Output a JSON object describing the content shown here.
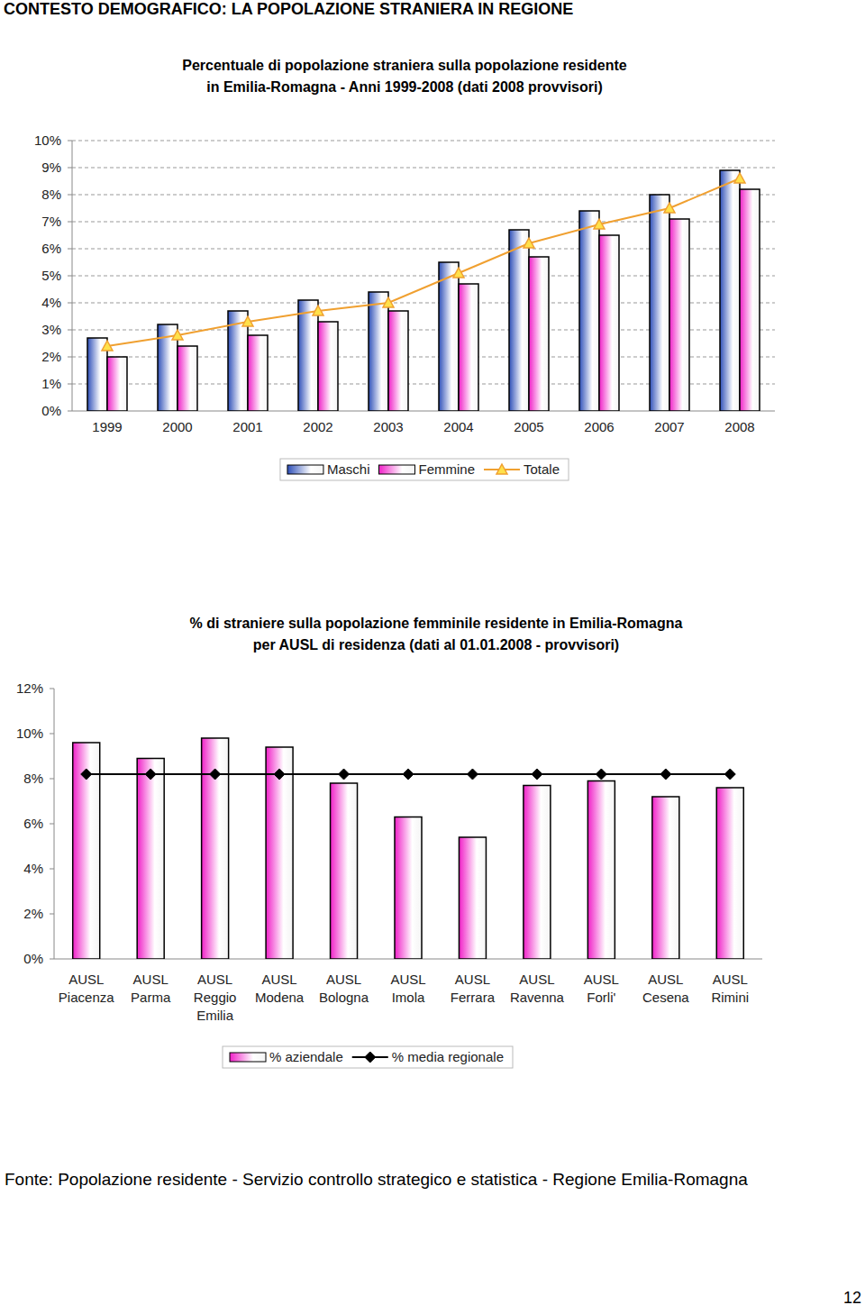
{
  "header": "CONTESTO DEMOGRAFICO: LA POPOLAZIONE STRANIERA IN REGIONE",
  "source": "Fonte: Popolazione residente - Servizio controllo strategico e statistica - Regione Emilia-Romagna",
  "page_number": 12,
  "chart_data": [
    {
      "type": "bar",
      "title": "Percentuale di popolazione straniera sulla popolazione residente\nin Emilia-Romagna - Anni 1999-2008 (dati 2008 provvisori)",
      "categories": [
        "1999",
        "2000",
        "2001",
        "2002",
        "2003",
        "2004",
        "2005",
        "2006",
        "2007",
        "2008"
      ],
      "series": [
        {
          "name": "Maschi",
          "type": "bar",
          "color": "#2e4fb8",
          "values": [
            2.7,
            3.2,
            3.7,
            4.1,
            4.4,
            5.5,
            6.7,
            7.4,
            8.0,
            8.9
          ]
        },
        {
          "name": "Femmine",
          "type": "bar",
          "color": "#f020c8",
          "values": [
            2.0,
            2.4,
            2.8,
            3.3,
            3.7,
            4.7,
            5.7,
            6.5,
            7.1,
            8.2
          ]
        },
        {
          "name": "Totale",
          "type": "line",
          "color": "#f0a030",
          "marker": "triangle",
          "line_style": "solid",
          "values": [
            2.4,
            2.8,
            3.3,
            3.7,
            4.0,
            5.1,
            6.2,
            6.9,
            7.5,
            8.6
          ]
        }
      ],
      "ylim": [
        0,
        10
      ],
      "yticks": [
        {
          "value": 0,
          "label": "0%"
        },
        {
          "value": 1,
          "label": "1%"
        },
        {
          "value": 2,
          "label": "2%"
        },
        {
          "value": 3,
          "label": "3%"
        },
        {
          "value": 4,
          "label": "4%"
        },
        {
          "value": 5,
          "label": "5%"
        },
        {
          "value": 6,
          "label": "6%"
        },
        {
          "value": 7,
          "label": "7%"
        },
        {
          "value": 8,
          "label": "8%"
        },
        {
          "value": 9,
          "label": "9%"
        },
        {
          "value": 10,
          "label": "10%"
        }
      ],
      "grid": true,
      "legend": "bottom"
    },
    {
      "type": "bar",
      "title": "% di straniere sulla popolazione femminile residente in Emilia-Romagna\nper AUSL di residenza (dati al 01.01.2008 - provvisori)",
      "categories": [
        "AUSL Piacenza",
        "AUSL Parma",
        "AUSL Reggio Emilia",
        "AUSL Modena",
        "AUSL Bologna",
        "AUSL Imola",
        "AUSL Ferrara",
        "AUSL Ravenna",
        "AUSL Forli'",
        "AUSL Cesena",
        "AUSL Rimini"
      ],
      "series": [
        {
          "name": "% aziendale",
          "type": "bar",
          "color": "#f020c8",
          "values": [
            9.6,
            8.9,
            9.8,
            9.4,
            7.8,
            6.3,
            5.4,
            7.7,
            7.9,
            7.2,
            7.6
          ]
        },
        {
          "name": "% media regionale",
          "type": "line",
          "color": "#000000",
          "marker": "diamond",
          "line_style": "solid",
          "values": [
            8.2,
            8.2,
            8.2,
            8.2,
            8.2,
            8.2,
            8.2,
            8.2,
            8.2,
            8.2,
            8.2
          ]
        }
      ],
      "ylim": [
        0,
        12
      ],
      "yticks": [
        {
          "value": 0,
          "label": "0%"
        },
        {
          "value": 2,
          "label": "2%"
        },
        {
          "value": 4,
          "label": "4%"
        },
        {
          "value": 6,
          "label": "6%"
        },
        {
          "value": 8,
          "label": "8%"
        },
        {
          "value": 10,
          "label": "10%"
        },
        {
          "value": 12,
          "label": "12%"
        }
      ],
      "grid": false,
      "legend": "bottom"
    }
  ]
}
